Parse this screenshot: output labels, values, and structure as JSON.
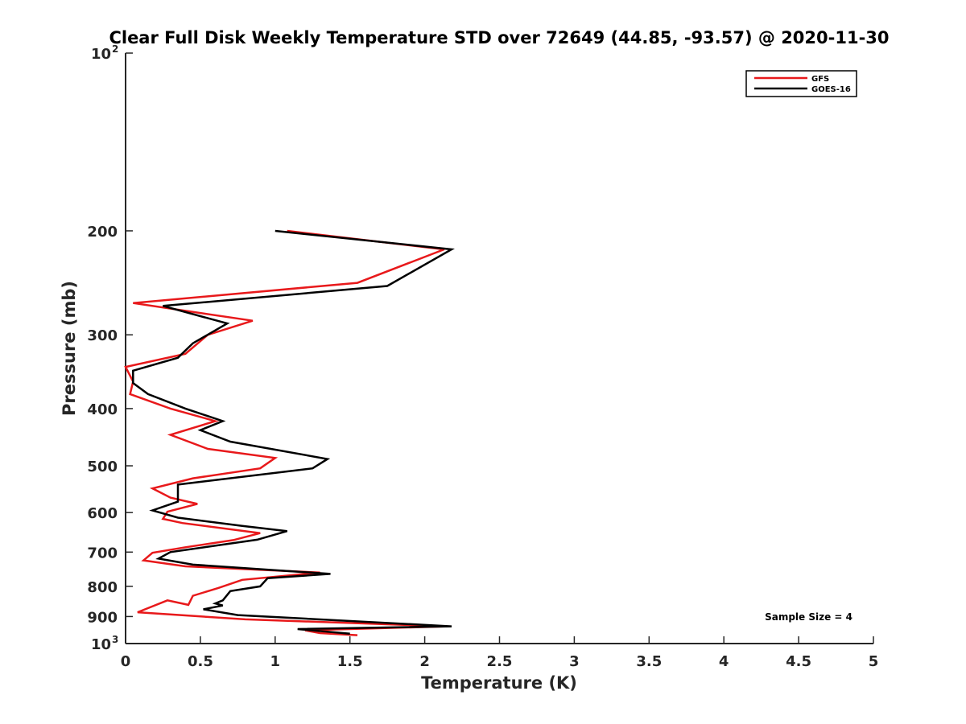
{
  "chart_data": {
    "type": "line",
    "title": "Clear Full Disk Weekly Temperature STD over 72649 (44.85, -93.57) @ 2020-11-30",
    "xlabel": "Temperature (K)",
    "ylabel": "Pressure (mb)",
    "xlim": [
      0,
      5
    ],
    "ylim": [
      100,
      1000
    ],
    "y_scale": "log",
    "y_reversed": true,
    "grid": false,
    "legend_position": "top-right",
    "x_ticks": [
      {
        "value": 0,
        "label": "0"
      },
      {
        "value": 0.5,
        "label": "0.5"
      },
      {
        "value": 1,
        "label": "1"
      },
      {
        "value": 1.5,
        "label": "1.5"
      },
      {
        "value": 2,
        "label": "2"
      },
      {
        "value": 2.5,
        "label": "2.5"
      },
      {
        "value": 3,
        "label": "3"
      },
      {
        "value": 3.5,
        "label": "3.5"
      },
      {
        "value": 4,
        "label": "4"
      },
      {
        "value": 4.5,
        "label": "4.5"
      },
      {
        "value": 5,
        "label": "5"
      }
    ],
    "y_ticks": [
      {
        "value": 100,
        "base": "10",
        "exp": "2"
      },
      {
        "value": 200,
        "base": "200",
        "exp": ""
      },
      {
        "value": 300,
        "base": "300",
        "exp": ""
      },
      {
        "value": 400,
        "base": "400",
        "exp": ""
      },
      {
        "value": 500,
        "base": "500",
        "exp": ""
      },
      {
        "value": 600,
        "base": "600",
        "exp": ""
      },
      {
        "value": 700,
        "base": "700",
        "exp": ""
      },
      {
        "value": 800,
        "base": "800",
        "exp": ""
      },
      {
        "value": 900,
        "base": "900",
        "exp": ""
      },
      {
        "value": 1000,
        "base": "10",
        "exp": "3"
      }
    ],
    "annotation": "Sample Size = 4",
    "series": [
      {
        "name": "GFS",
        "color": "#e8191b",
        "points": [
          [
            1.08,
            200
          ],
          [
            2.13,
            215
          ],
          [
            1.55,
            245
          ],
          [
            0.05,
            265
          ],
          [
            0.85,
            284
          ],
          [
            0.55,
            300
          ],
          [
            0.4,
            323
          ],
          [
            0.0,
            340
          ],
          [
            0.05,
            360
          ],
          [
            0.03,
            378
          ],
          [
            0.3,
            400
          ],
          [
            0.6,
            420
          ],
          [
            0.3,
            443
          ],
          [
            0.55,
            468
          ],
          [
            1.0,
            485
          ],
          [
            0.9,
            505
          ],
          [
            0.45,
            525
          ],
          [
            0.18,
            546
          ],
          [
            0.3,
            566
          ],
          [
            0.48,
            580
          ],
          [
            0.28,
            598
          ],
          [
            0.25,
            615
          ],
          [
            0.38,
            625
          ],
          [
            0.9,
            650
          ],
          [
            0.72,
            668
          ],
          [
            0.4,
            687
          ],
          [
            0.18,
            702
          ],
          [
            0.12,
            723
          ],
          [
            0.4,
            740
          ],
          [
            1.3,
            758
          ],
          [
            0.78,
            780
          ],
          [
            0.62,
            805
          ],
          [
            0.45,
            830
          ],
          [
            0.42,
            860
          ],
          [
            0.28,
            845
          ],
          [
            0.08,
            885
          ],
          [
            0.8,
            910
          ],
          [
            2.15,
            935
          ],
          [
            1.2,
            950
          ],
          [
            1.3,
            960
          ],
          [
            1.55,
            968
          ]
        ]
      },
      {
        "name": "GOES-16",
        "color": "#000000",
        "points": [
          [
            1.0,
            200
          ],
          [
            2.18,
            215
          ],
          [
            1.75,
            248
          ],
          [
            0.25,
            268
          ],
          [
            0.68,
            287
          ],
          [
            0.45,
            310
          ],
          [
            0.35,
            328
          ],
          [
            0.05,
            345
          ],
          [
            0.05,
            362
          ],
          [
            0.15,
            378
          ],
          [
            0.4,
            400
          ],
          [
            0.65,
            420
          ],
          [
            0.5,
            435
          ],
          [
            0.7,
            455
          ],
          [
            1.35,
            487
          ],
          [
            1.25,
            505
          ],
          [
            0.35,
            538
          ],
          [
            0.35,
            560
          ],
          [
            0.35,
            575
          ],
          [
            0.18,
            595
          ],
          [
            0.35,
            612
          ],
          [
            0.78,
            632
          ],
          [
            1.08,
            645
          ],
          [
            0.88,
            667
          ],
          [
            0.3,
            700
          ],
          [
            0.22,
            718
          ],
          [
            0.45,
            735
          ],
          [
            1.37,
            762
          ],
          [
            0.95,
            775
          ],
          [
            0.9,
            800
          ],
          [
            0.7,
            815
          ],
          [
            0.65,
            845
          ],
          [
            0.6,
            855
          ],
          [
            0.65,
            862
          ],
          [
            0.52,
            875
          ],
          [
            0.75,
            895
          ],
          [
            2.18,
            935
          ],
          [
            1.15,
            945
          ],
          [
            1.5,
            962
          ]
        ]
      }
    ]
  }
}
